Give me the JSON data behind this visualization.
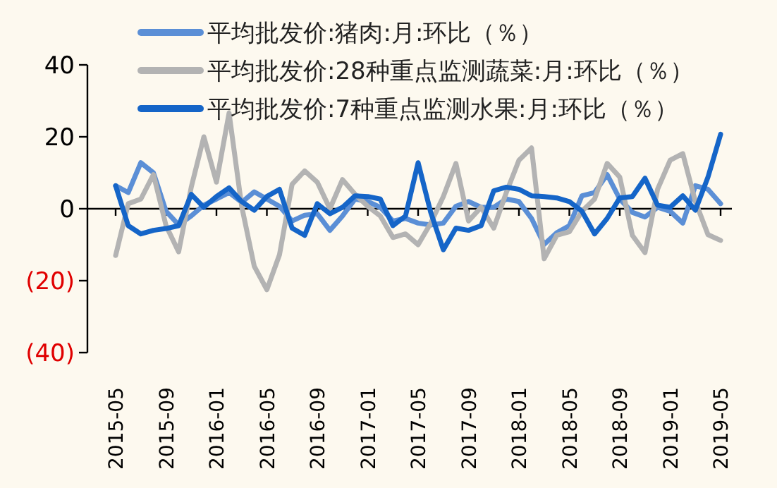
{
  "chart_data": {
    "type": "line",
    "categories": [
      "2015-05",
      null,
      null,
      null,
      "2015-09",
      null,
      null,
      null,
      "2016-01",
      null,
      null,
      null,
      "2016-05",
      null,
      null,
      null,
      "2016-09",
      null,
      null,
      null,
      "2017-01",
      null,
      null,
      null,
      "2017-05",
      null,
      null,
      null,
      "2017-09",
      null,
      null,
      null,
      "2018-01",
      null,
      null,
      null,
      "2018-05",
      null,
      null,
      null,
      "2018-09",
      null,
      null,
      null,
      "2019-01",
      null,
      null,
      null,
      "2019-05"
    ],
    "series": [
      {
        "name": "平均批发价:猪肉:月:环比（％）",
        "color": "#5b8fd6",
        "values": [
          6.4,
          4.5,
          12.8,
          10,
          -0.7,
          -4.5,
          -2,
          1,
          2.7,
          4.5,
          1.8,
          4.7,
          2.7,
          0.7,
          -3.4,
          -1.8,
          -1.4,
          -6,
          -2,
          2.7,
          2,
          0.4,
          -3.4,
          -2.7,
          -4,
          -4.5,
          -4,
          0.7,
          2,
          0.4,
          0.4,
          2.7,
          2,
          -2.7,
          -9.9,
          -6.7,
          -4.7,
          3.6,
          4.5,
          9.5,
          2.7,
          -1,
          -2.3,
          0.4,
          -0.7,
          -4,
          6.4,
          5.4,
          1.4
        ]
      },
      {
        "name": "平均批发价:28种重点监测蔬菜:月:环比（％）",
        "color": "#b3b3b3",
        "values": [
          -13,
          1.4,
          2.7,
          9.5,
          -4.7,
          -12,
          6,
          20,
          7.4,
          26.6,
          0.7,
          -16,
          -22.5,
          -12.8,
          6.8,
          10.5,
          7.4,
          0,
          8.1,
          4,
          0.7,
          -2,
          -8,
          -7,
          -10,
          -4,
          3.4,
          12.6,
          -3.4,
          0.4,
          -5.4,
          4.5,
          13.5,
          16.9,
          -13.9,
          -7.4,
          -6.4,
          -0.7,
          2.7,
          12.6,
          8.8,
          -7.4,
          -12.2,
          5.4,
          13.5,
          15.3,
          2,
          -7.2,
          -8.8
        ]
      },
      {
        "name": "平均批发价:7种重点监测水果:月:环比（％）",
        "color": "#1565c8",
        "values": [
          6.4,
          -4.7,
          -7,
          -6,
          -5.5,
          -4.7,
          4,
          0.4,
          3.4,
          5.8,
          2,
          -0.4,
          3.4,
          5.4,
          -5.4,
          -7.4,
          1.4,
          -1.4,
          0.4,
          3.6,
          3.4,
          2.7,
          -4.7,
          -2,
          12.8,
          -1,
          -11.4,
          -5.4,
          -6,
          -4.7,
          5,
          6,
          5.4,
          3.6,
          3.4,
          3,
          2,
          -0.7,
          -7,
          -2.7,
          3,
          3.4,
          8.5,
          1,
          0.4,
          3.6,
          -0.4,
          8.8,
          20.7
        ]
      }
    ],
    "ylim": [
      -40,
      40
    ],
    "yticks": [
      40,
      20,
      0,
      {
        "value": -20,
        "label": "(20)"
      },
      {
        "value": -40,
        "label": "(40)"
      }
    ],
    "legend": "top left",
    "line_style": "solid"
  }
}
